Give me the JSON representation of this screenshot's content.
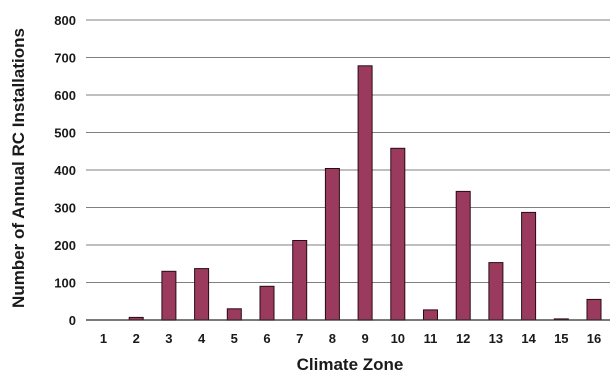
{
  "chart_data": {
    "type": "bar",
    "categories": [
      "1",
      "2",
      "3",
      "4",
      "5",
      "6",
      "7",
      "8",
      "9",
      "10",
      "11",
      "12",
      "13",
      "14",
      "15",
      "16"
    ],
    "values": [
      0,
      7,
      130,
      137,
      30,
      90,
      212,
      404,
      678,
      458,
      27,
      343,
      153,
      287,
      3,
      55
    ],
    "xlabel": "Climate Zone",
    "ylabel": "Number of Annual RC Installations",
    "ylim": [
      0,
      800
    ],
    "yticks": [
      "0",
      "100",
      "200",
      "300",
      "400",
      "500",
      "600",
      "700",
      "800"
    ],
    "grid": true,
    "colors": {
      "bar": "#9a3b5e",
      "grid": "#7f7f7f"
    }
  }
}
